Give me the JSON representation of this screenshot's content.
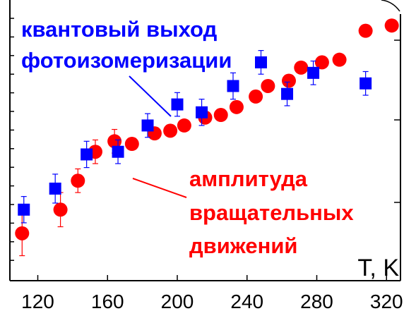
{
  "chart_data": {
    "type": "scatter",
    "title": "",
    "xlabel": "T, K",
    "ylabel": "",
    "xlim": [
      104,
      328
    ],
    "ylim": [
      0,
      1
    ],
    "x_ticks": [
      120,
      160,
      200,
      240,
      280,
      320
    ],
    "grid": false,
    "series": [
      {
        "name": "квантовый выход фотоизомеризации",
        "marker": "square",
        "color": "#0000ff",
        "points": [
          {
            "x": 112,
            "y": 0.27,
            "err": 0.05
          },
          {
            "x": 130,
            "y": 0.35,
            "err": 0.055
          },
          {
            "x": 148,
            "y": 0.48,
            "err": 0.05
          },
          {
            "x": 166,
            "y": 0.49,
            "err": 0.045
          },
          {
            "x": 183,
            "y": 0.59,
            "err": 0.045
          },
          {
            "x": 200,
            "y": 0.67,
            "err": 0.045
          },
          {
            "x": 214,
            "y": 0.64,
            "err": 0.05
          },
          {
            "x": 232,
            "y": 0.74,
            "err": 0.05
          },
          {
            "x": 248,
            "y": 0.83,
            "err": 0.045
          },
          {
            "x": 263,
            "y": 0.71,
            "err": 0.045
          },
          {
            "x": 278,
            "y": 0.79,
            "err": 0.045
          },
          {
            "x": 308,
            "y": 0.75,
            "err": 0.045
          }
        ]
      },
      {
        "name": "амплитуда вращательных движений",
        "marker": "circle",
        "color": "#ff0000",
        "points": [
          {
            "x": 111,
            "y": 0.18,
            "err": 0.085
          },
          {
            "x": 133,
            "y": 0.27,
            "err": 0.065
          },
          {
            "x": 143,
            "y": 0.38,
            "err": 0.045
          },
          {
            "x": 153,
            "y": 0.49,
            "err": 0.045
          },
          {
            "x": 164,
            "y": 0.53,
            "err": 0.045
          },
          {
            "x": 174,
            "y": 0.52,
            "err": 0
          },
          {
            "x": 187,
            "y": 0.56,
            "err": 0
          },
          {
            "x": 196,
            "y": 0.57,
            "err": 0
          },
          {
            "x": 204,
            "y": 0.59,
            "err": 0
          },
          {
            "x": 216,
            "y": 0.62,
            "err": 0
          },
          {
            "x": 225,
            "y": 0.63,
            "err": 0
          },
          {
            "x": 234,
            "y": 0.66,
            "err": 0
          },
          {
            "x": 245,
            "y": 0.7,
            "err": 0
          },
          {
            "x": 252,
            "y": 0.74,
            "err": 0
          },
          {
            "x": 264,
            "y": 0.76,
            "err": 0
          },
          {
            "x": 271,
            "y": 0.81,
            "err": 0
          },
          {
            "x": 283,
            "y": 0.83,
            "err": 0
          },
          {
            "x": 293,
            "y": 0.84,
            "err": 0
          },
          {
            "x": 308,
            "y": 0.95,
            "err": 0
          },
          {
            "x": 323,
            "y": 0.97,
            "err": 0
          }
        ]
      }
    ]
  },
  "annotations": {
    "blue_line1": "квантовый выход",
    "blue_line2": "фотоизомеризации",
    "red_line1": "амплитуда",
    "red_line2": "вращательных",
    "red_line3": "движений",
    "x_unit": "T, K"
  },
  "colors": {
    "blue": "#0000ff",
    "red": "#ff0000",
    "axis": "#000000"
  }
}
